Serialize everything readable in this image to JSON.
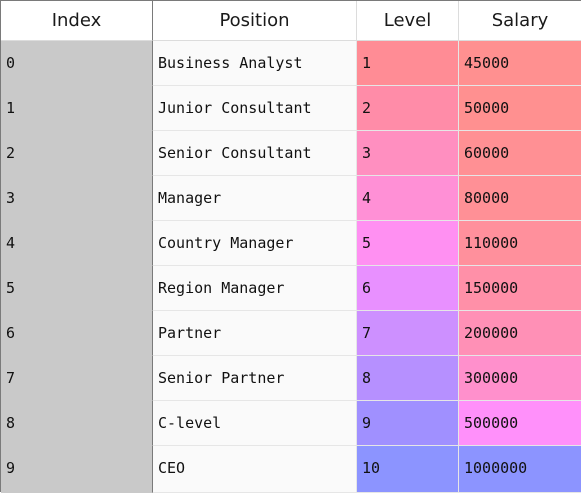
{
  "columns": {
    "index": "Index",
    "position": "Position",
    "level": "Level",
    "salary": "Salary"
  },
  "rows": [
    {
      "index": "0",
      "position": "Business Analyst",
      "level": "1",
      "salary": "45000",
      "level_color": "#ff8c95",
      "salary_color": "#ff9090"
    },
    {
      "index": "1",
      "position": "Junior Consultant",
      "level": "2",
      "salary": "50000",
      "level_color": "#ff8ca8",
      "salary_color": "#ff9090"
    },
    {
      "index": "2",
      "position": "Senior Consultant",
      "level": "3",
      "salary": "60000",
      "level_color": "#ff8fc0",
      "salary_color": "#ff9094"
    },
    {
      "index": "3",
      "position": "Manager",
      "level": "4",
      "salary": "80000",
      "level_color": "#ff90d6",
      "salary_color": "#ff9096"
    },
    {
      "index": "4",
      "position": "Country Manager",
      "level": "5",
      "salary": "110000",
      "level_color": "#ff90f2",
      "salary_color": "#ff909c"
    },
    {
      "index": "5",
      "position": "Region Manager",
      "level": "6",
      "salary": "150000",
      "level_color": "#e890ff",
      "salary_color": "#ff90a8"
    },
    {
      "index": "6",
      "position": "Partner",
      "level": "7",
      "salary": "200000",
      "level_color": "#cd90ff",
      "salary_color": "#ff90b6"
    },
    {
      "index": "7",
      "position": "Senior Partner",
      "level": "8",
      "salary": "300000",
      "level_color": "#b690ff",
      "salary_color": "#ff90cc"
    },
    {
      "index": "8",
      "position": "C-level",
      "level": "9",
      "salary": "500000",
      "level_color": "#a090ff",
      "salary_color": "#ff90fa"
    },
    {
      "index": "9",
      "position": "CEO",
      "level": "10",
      "salary": "1000000",
      "level_color": "#8c94ff",
      "salary_color": "#8c94ff"
    }
  ]
}
